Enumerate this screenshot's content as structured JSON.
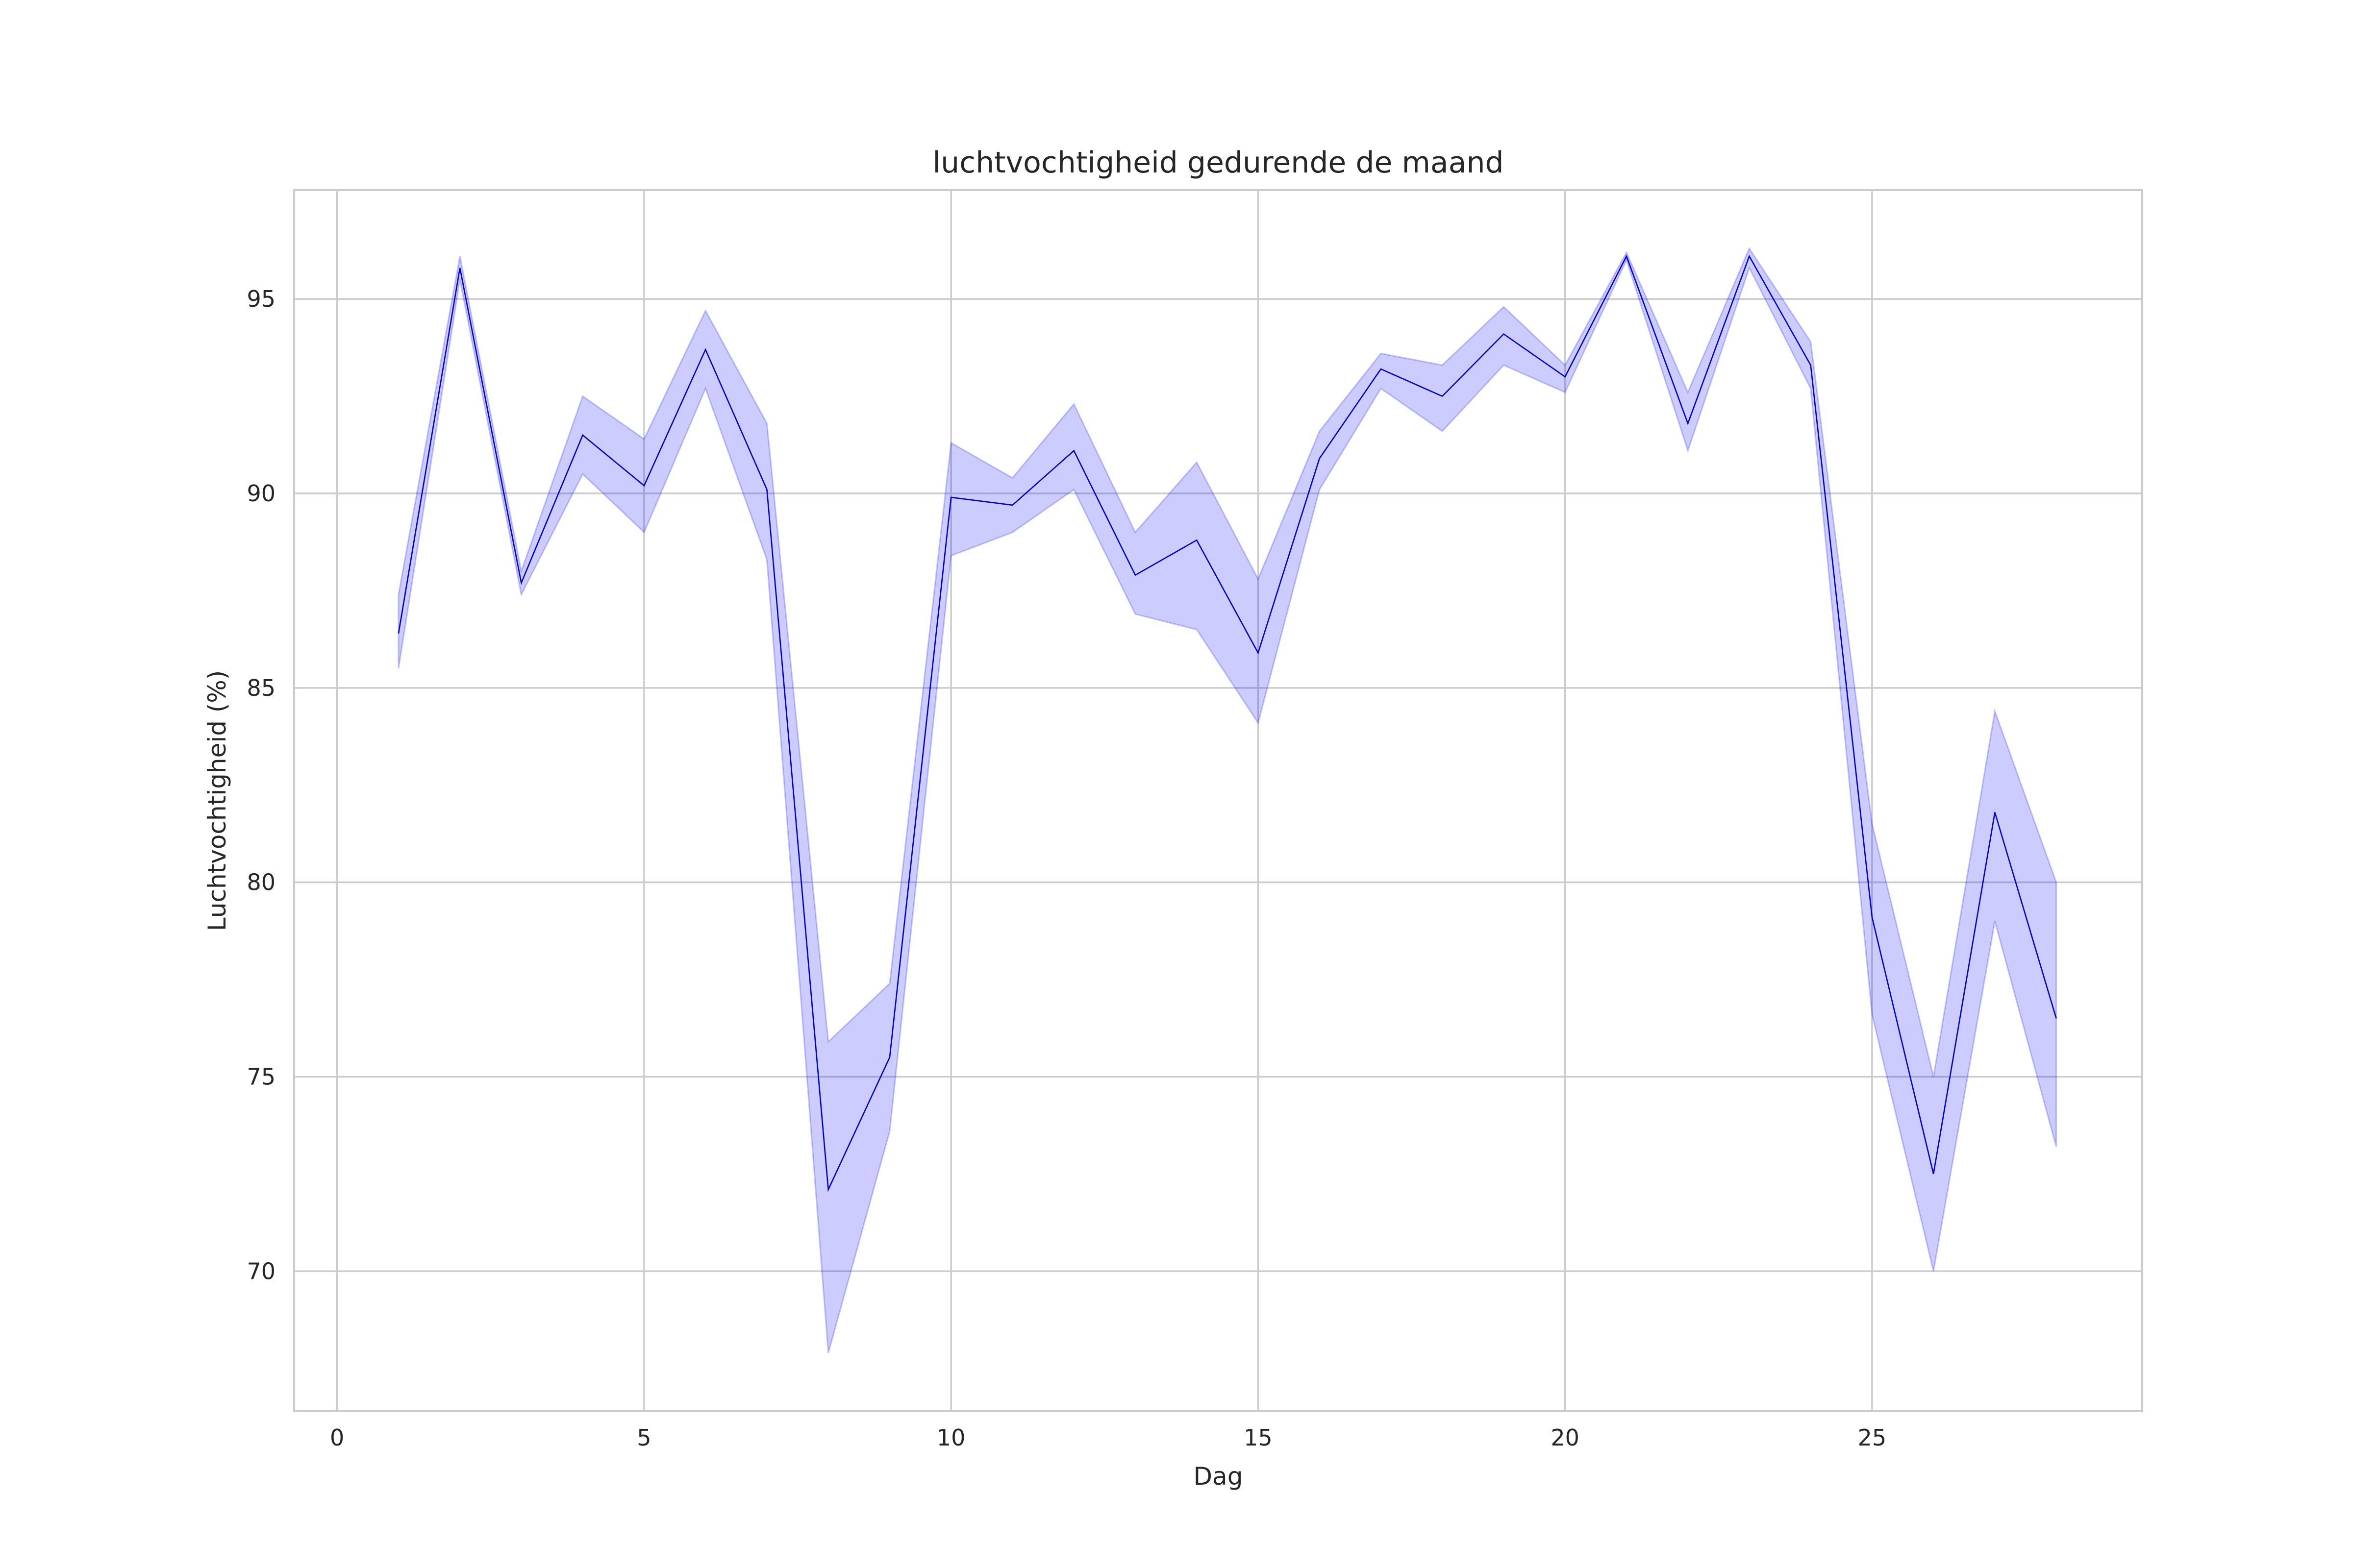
{
  "chart_data": {
    "type": "line",
    "title": "luchtvochtigheid gedurende de maand",
    "xlabel": "Dag",
    "ylabel": "Luchtvochtigheid (%)",
    "xlim": [
      -0.7,
      29.4
    ],
    "ylim": [
      66.4,
      97.8
    ],
    "x_ticks": [
      0,
      5,
      10,
      15,
      20,
      25
    ],
    "y_ticks": [
      70,
      75,
      80,
      85,
      90,
      95
    ],
    "grid": true,
    "legend": "none",
    "colors": {
      "line": "#0000cc",
      "band": "#0000ff"
    },
    "series": [
      {
        "x": [
          1,
          2,
          3,
          4,
          5,
          6,
          7,
          8,
          9,
          10,
          11,
          12,
          13,
          14,
          15,
          16,
          17,
          18,
          19,
          20,
          21,
          22,
          23,
          24,
          25,
          26,
          27,
          28
        ],
        "values": [
          86.4,
          95.8,
          87.7,
          91.5,
          90.2,
          93.7,
          90.1,
          72.1,
          75.5,
          89.9,
          89.7,
          91.1,
          87.9,
          88.8,
          85.9,
          90.9,
          93.2,
          92.5,
          94.1,
          93.0,
          96.1,
          91.8,
          96.1,
          93.3,
          79.1,
          72.5,
          81.8,
          76.5
        ],
        "ci_lower": [
          85.5,
          95.5,
          87.4,
          90.5,
          89.0,
          92.7,
          88.3,
          67.9,
          73.6,
          88.4,
          89.0,
          90.1,
          86.9,
          86.5,
          84.1,
          90.1,
          92.7,
          91.6,
          93.3,
          92.6,
          96.0,
          91.1,
          95.8,
          92.7,
          76.6,
          70.0,
          79.0,
          73.2
        ],
        "ci_upper": [
          87.4,
          96.1,
          88.0,
          92.5,
          91.4,
          94.7,
          91.8,
          75.9,
          77.4,
          91.3,
          90.4,
          92.3,
          89.0,
          90.8,
          87.8,
          91.6,
          93.6,
          93.3,
          94.8,
          93.3,
          96.2,
          92.6,
          96.3,
          93.9,
          81.5,
          75.0,
          84.4,
          80.0
        ]
      }
    ]
  }
}
